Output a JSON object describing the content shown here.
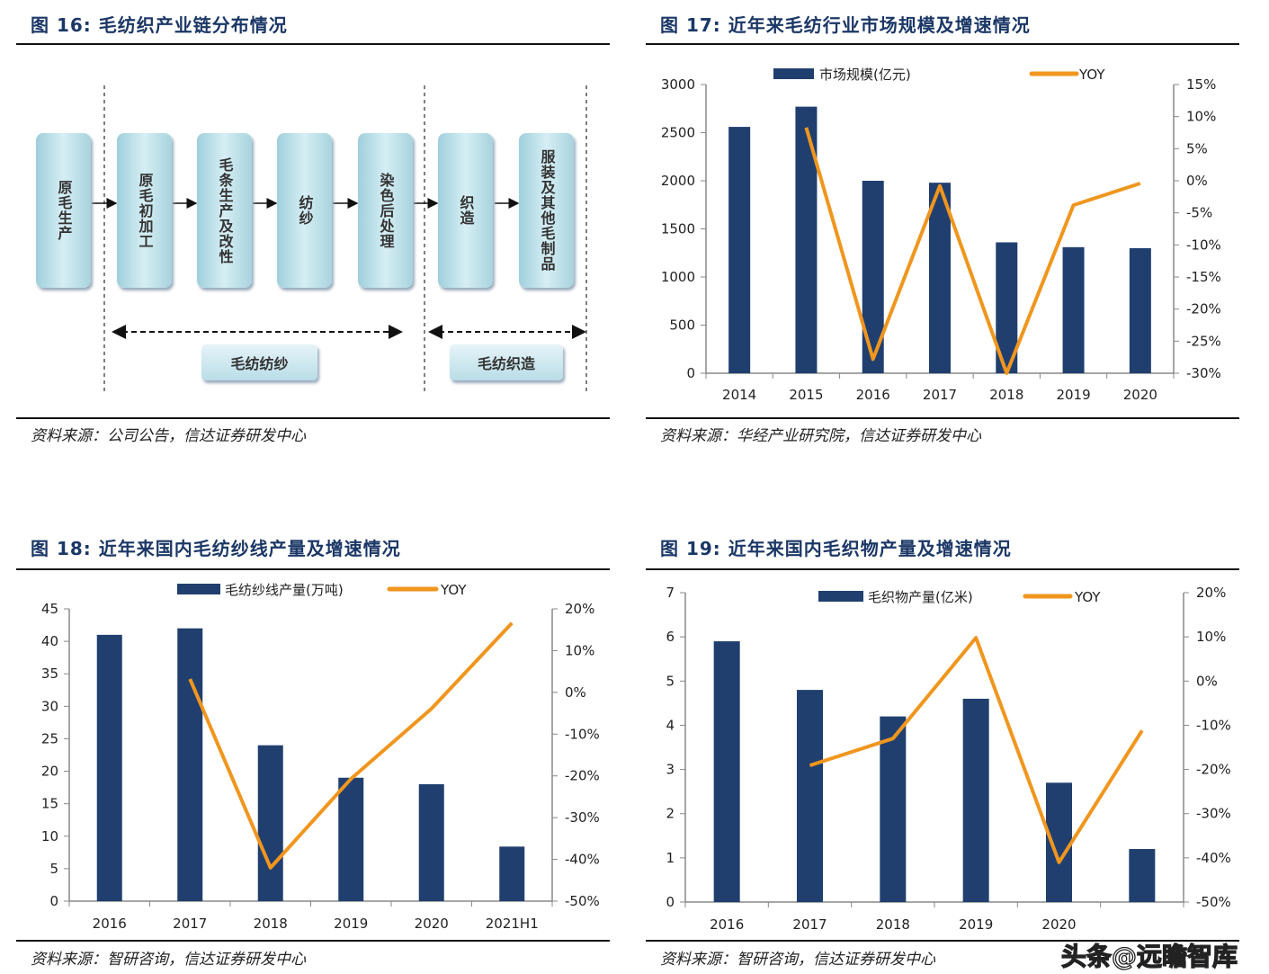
{
  "panels": [
    {
      "title": "图 16:  毛纺织产业链分布情况",
      "source": "资料来源：公司公告，信达证券研发中心"
    },
    {
      "title": "图 17:  近年来毛纺行业市场规模及增速情况",
      "source": "资料来源：华经产业研究院，信达证券研发中心"
    },
    {
      "title": "图 18:  近年来国内毛纺纱线产量及增速情况",
      "source": "资料来源：智研咨询，信达证券研发中心"
    },
    {
      "title": "图 19:  近年来国内毛织物产量及增速情况",
      "source": "资料来源：智研咨询，信达证券研发中心"
    }
  ],
  "diagram": {
    "steps": [
      "原毛生产",
      "原毛初加工",
      "毛条生产及改性",
      "纺纱",
      "染色后处理",
      "织造",
      "服装及其他毛制品"
    ],
    "groups": [
      "毛纺纺纱",
      "毛纺织造"
    ]
  },
  "watermark": "头条@远瞻智库",
  "colors": {
    "bar": "#203f6f",
    "line": "#f0961e",
    "title": "#1b3766",
    "box": "#bfe3ec"
  },
  "chart_data": [
    {
      "type": "bar+line",
      "categories": [
        "2014",
        "2015",
        "2016",
        "2017",
        "2018",
        "2019",
        "2020"
      ],
      "series": [
        {
          "name": "市场规模(亿元)",
          "type": "bar",
          "axis": "left",
          "values": [
            2560,
            2770,
            2000,
            1980,
            1360,
            1310,
            1300
          ]
        },
        {
          "name": "YOY",
          "type": "line",
          "axis": "right",
          "values": [
            null,
            8.3,
            -27.8,
            -0.8,
            -30.0,
            -3.8,
            -0.4
          ]
        }
      ],
      "yleft": {
        "range": [
          0,
          3000
        ],
        "ticks": [
          "0",
          "500",
          "1000",
          "1500",
          "2000",
          "2500",
          "3000"
        ]
      },
      "yright": {
        "range": [
          -30,
          15
        ],
        "ticks": [
          "-30%",
          "-25%",
          "-20%",
          "-15%",
          "-10%",
          "-5%",
          "0%",
          "5%",
          "10%",
          "15%"
        ]
      },
      "legend": "top",
      "grid": false
    },
    {
      "type": "bar+line",
      "categories": [
        "2016",
        "2017",
        "2018",
        "2019",
        "2020",
        "2021H1"
      ],
      "series": [
        {
          "name": "毛纺纱线产量(万吨)",
          "type": "bar",
          "axis": "left",
          "values": [
            41,
            42,
            24,
            19,
            18,
            8.4
          ]
        },
        {
          "name": "YOY",
          "type": "line",
          "axis": "right",
          "values": [
            null,
            3.2,
            -42.0,
            -20.7,
            -3.9,
            16.6
          ]
        }
      ],
      "yleft": {
        "range": [
          0,
          45
        ],
        "ticks": [
          "0",
          "5",
          "10",
          "15",
          "20",
          "25",
          "30",
          "35",
          "40",
          "45"
        ]
      },
      "yright": {
        "range": [
          -50,
          20
        ],
        "ticks": [
          "-50%",
          "-40%",
          "-30%",
          "-20%",
          "-10%",
          "0%",
          "10%",
          "20%"
        ]
      },
      "legend": "top",
      "grid": false
    },
    {
      "type": "bar+line",
      "categories": [
        "2016",
        "2017",
        "2018",
        "2019",
        "2020",
        ""
      ],
      "series": [
        {
          "name": "毛织物产量(亿米)",
          "type": "bar",
          "axis": "left",
          "values": [
            5.9,
            4.8,
            4.2,
            4.6,
            2.7,
            1.2
          ]
        },
        {
          "name": "YOY",
          "type": "line",
          "axis": "right",
          "values": [
            null,
            -19.1,
            -13.0,
            9.8,
            -41.0,
            -11.2
          ]
        }
      ],
      "yleft": {
        "range": [
          0,
          7
        ],
        "ticks": [
          "0",
          "1",
          "2",
          "3",
          "4",
          "5",
          "6",
          "7"
        ]
      },
      "yright": {
        "range": [
          -50,
          20
        ],
        "ticks": [
          "-50%",
          "-40%",
          "-30%",
          "-20%",
          "-10%",
          "0%",
          "10%",
          "20%"
        ]
      },
      "legend": "top",
      "grid": false
    }
  ]
}
